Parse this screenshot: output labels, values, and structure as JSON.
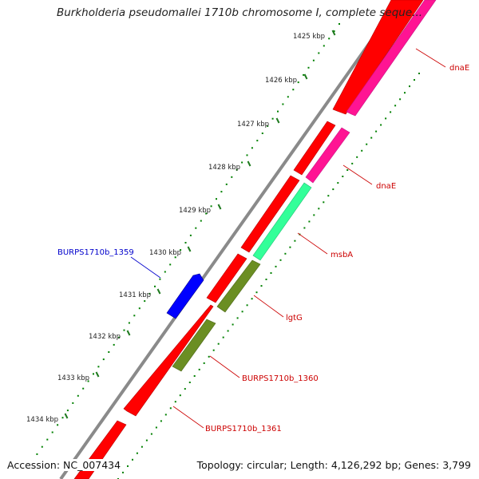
{
  "title": "Burkholderia pseudomallei 1710b chromosome I, complete seque...",
  "footer": {
    "accession": "Accession: NC_007434",
    "topology": "Topology: circular; Length: 4,126,292 bp; Genes: 3,799"
  },
  "ruler": {
    "labels": [
      "1425 kbp",
      "1426 kbp",
      "1427 kbp",
      "1428 kbp",
      "1429 kbp",
      "1430 kbp",
      "1431 kbp",
      "1432 kbp",
      "1433 kbp",
      "1434 kbp"
    ]
  },
  "genes": [
    {
      "name": "dnaE",
      "color": "#cc0000",
      "feature_color": "#ff1493"
    },
    {
      "name": "dnaE",
      "color": "#cc0000",
      "feature_color": "#ff1493"
    },
    {
      "name": "msbA",
      "color": "#cc0000",
      "feature_color": "#33ff99"
    },
    {
      "name": "lgtG",
      "color": "#cc0000",
      "feature_color": "#6b8e23"
    },
    {
      "name": "BURPS1710b_1360",
      "color": "#cc0000",
      "feature_color": "#6b8e23"
    },
    {
      "name": "BURPS1710b_1361",
      "color": "#cc0000",
      "feature_color": "#ff0000"
    },
    {
      "name": "BURPS1710b_1359",
      "color": "#0000cc",
      "feature_color": "#0000ff"
    }
  ],
  "colors": {
    "backbone": "#808080",
    "cds": "#ff0000",
    "ruler_dots": "#008000"
  }
}
